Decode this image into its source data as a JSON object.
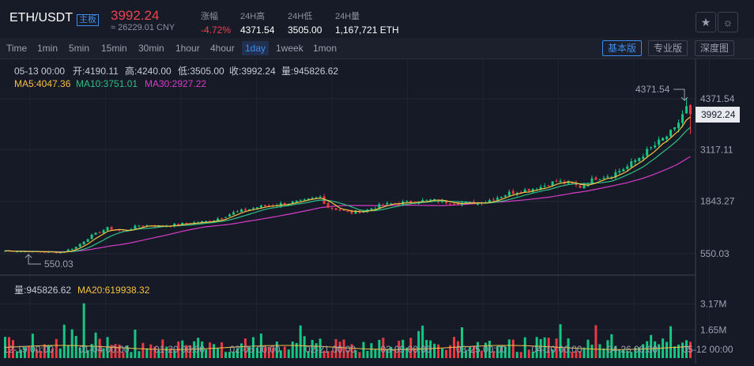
{
  "header": {
    "pair": "ETH/USDT",
    "board": "主板",
    "price": "3992.24",
    "price_cny": "≈ 26229.01 CNY",
    "change_label": "涨幅",
    "change_value": "-4.72%",
    "high_label": "24H高",
    "high_value": "4371.54",
    "low_label": "24H低",
    "low_value": "3505.00",
    "volume_label": "24H量",
    "volume_value": "1,167,721 ETH",
    "icons": [
      "star-icon",
      "settings-icon"
    ]
  },
  "toolbar": {
    "timeframes": [
      "Time",
      "1min",
      "5min",
      "15min",
      "30min",
      "1hour",
      "4hour",
      "1day",
      "1week",
      "1mon"
    ],
    "active_timeframe": "1day",
    "views": [
      "基本版",
      "专业版",
      "深度图"
    ],
    "active_view": "基本版"
  },
  "ohlc": {
    "date": "05-13 00:00",
    "open": "开:4190.11",
    "high": "高:4240.00",
    "low": "低:3505.00",
    "close": "收:3992.24",
    "volume": "量:945826.62"
  },
  "ma": {
    "ma5": "MA5:4047.36",
    "ma10": "MA10:3751.01",
    "ma30": "MA30:2927.22"
  },
  "volume_legend": {
    "vol": "量:945826.62",
    "ma20": "MA20:619938.32"
  },
  "annotations": {
    "max": "4371.54",
    "min": "550.03"
  },
  "colors": {
    "up": "#16c784",
    "down": "#ea3943",
    "ma5": "#f6c143",
    "ma10": "#2fbf86",
    "ma30": "#d63cc8",
    "accent": "#3d8cf0"
  },
  "chart_data": {
    "type": "candlestick",
    "price_ticks": [
      "4371.54",
      "3117.11",
      "1843.27",
      "550.03"
    ],
    "price_tick_values": [
      4371.54,
      3117.11,
      1843.27,
      550.03
    ],
    "volume_ticks": [
      "3.17M",
      "1.65M"
    ],
    "volume_tick_values": [
      3.17,
      1.65
    ],
    "x_ticks": [
      "12-19 00:00",
      "01-04 00:00",
      "01-20 00:00",
      "02-05 00:00",
      "02-21 00:00",
      "03-09 00:00",
      "03-25 00:00",
      "04-10 00:00",
      "04-26 00:00",
      "05-12 00:00"
    ],
    "current_price": "3992.24",
    "close_anchors": [
      [
        0,
        620
      ],
      [
        8,
        600
      ],
      [
        14,
        580
      ],
      [
        18,
        720
      ],
      [
        22,
        1000
      ],
      [
        26,
        1180
      ],
      [
        30,
        1100
      ],
      [
        34,
        1250
      ],
      [
        40,
        1230
      ],
      [
        46,
        1300
      ],
      [
        52,
        1350
      ],
      [
        58,
        1560
      ],
      [
        64,
        1700
      ],
      [
        70,
        1780
      ],
      [
        76,
        1850
      ],
      [
        80,
        1950
      ],
      [
        82,
        1700
      ],
      [
        88,
        1560
      ],
      [
        92,
        1640
      ],
      [
        96,
        1760
      ],
      [
        100,
        1800
      ],
      [
        104,
        1840
      ],
      [
        108,
        1870
      ],
      [
        112,
        1830
      ],
      [
        118,
        1790
      ],
      [
        122,
        1840
      ],
      [
        128,
        2050
      ],
      [
        132,
        2120
      ],
      [
        136,
        2200
      ],
      [
        140,
        2340
      ],
      [
        144,
        2260
      ],
      [
        146,
        2200
      ],
      [
        150,
        2420
      ],
      [
        154,
        2500
      ],
      [
        158,
        2700
      ],
      [
        162,
        3000
      ],
      [
        166,
        3300
      ],
      [
        170,
        3600
      ],
      [
        173,
        4190
      ],
      [
        174,
        3992
      ]
    ]
  }
}
